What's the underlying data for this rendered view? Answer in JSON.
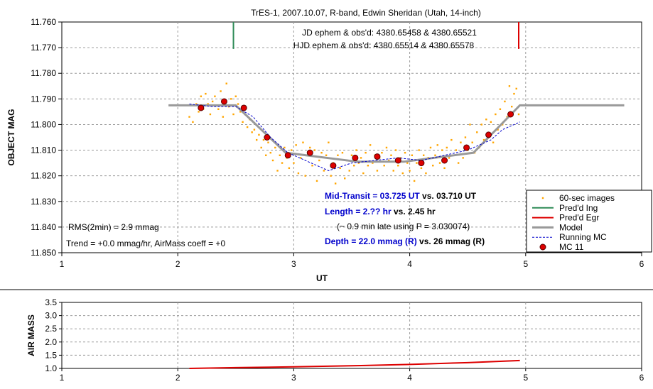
{
  "chart_data": [
    {
      "type": "scatter",
      "title": "TrES-1, 2007.10.07, R-band, Edwin Sheridan (Utah, 14-inch)",
      "xlabel": "UT",
      "ylabel": "OBJECT MAG",
      "xlim": [
        1,
        6
      ],
      "ylim": [
        11.76,
        11.85
      ],
      "y_inverted": true,
      "grid": true,
      "x_ticks": [
        "1",
        "2",
        "3",
        "4",
        "5",
        "6"
      ],
      "y_ticks": [
        "11.760",
        "11.770",
        "11.780",
        "11.790",
        "11.800",
        "11.810",
        "11.820",
        "11.830",
        "11.840",
        "11.850"
      ],
      "annotations": {
        "jd_line": "JD ephem & obs'd: 4380.65458 & 4380.65521",
        "hjd_line": "HJD ephem & obs'd: 4380.65514 & 4380.65578",
        "mid_transit_label": "Mid-Transit = 03.725 UT",
        "mid_transit_vs": " vs. 03.710 UT",
        "length_label": "Length = 2.?? hr",
        "length_vs": " vs. 2.45 hr",
        "late_note": "(~ 0.9 min late using P = 3.030074)",
        "depth_label": "Depth = 22.0 mmag (R)",
        "depth_vs": " vs. 26 mmag  (R)",
        "rms": "RMS(2min) = 2.9 mmag",
        "trend": "Trend = +0.0 mmag/hr, AirMass coeff = +0"
      },
      "legend": {
        "position": "bottom-right",
        "entries": [
          "60-sec images",
          "Pred'd Ing",
          "Pred'd Egr",
          "Model",
          "Running MC",
          "MC 11"
        ]
      },
      "colors": {
        "images": "#ffa500",
        "ingress": "#2e8b57",
        "egress": "#dd0000",
        "model": "#999999",
        "running_mc": "#0000cc",
        "mc11_fill": "#dd0000",
        "mc11_stroke": "#550000",
        "highlight": "#0000cc"
      },
      "predicted_ingress_ut": 2.48,
      "predicted_egress_ut": 4.94,
      "model": {
        "name": "Model",
        "x": [
          1.92,
          2.5,
          2.93,
          3.55,
          3.95,
          4.55,
          4.95,
          5.85
        ],
        "y": [
          11.7925,
          11.7925,
          11.811,
          11.8145,
          11.8145,
          11.811,
          11.7925,
          11.7925
        ]
      },
      "running_mc": {
        "name": "Running MC",
        "x": [
          2.1,
          2.3,
          2.5,
          2.65,
          2.8,
          2.95,
          3.1,
          3.3,
          3.5,
          3.7,
          3.9,
          4.1,
          4.3,
          4.5,
          4.6,
          4.7,
          4.8,
          4.95
        ],
        "y": [
          11.792,
          11.793,
          11.793,
          11.797,
          11.805,
          11.811,
          11.814,
          11.818,
          11.815,
          11.814,
          11.813,
          11.814,
          11.812,
          11.81,
          11.808,
          11.806,
          11.802,
          11.799
        ]
      },
      "mc11": {
        "name": "MC 11",
        "x": [
          2.2,
          2.4,
          2.57,
          2.77,
          2.95,
          3.14,
          3.34,
          3.53,
          3.72,
          3.9,
          4.1,
          4.3,
          4.49,
          4.68,
          4.87
        ],
        "y": [
          11.7935,
          11.791,
          11.7935,
          11.805,
          11.812,
          11.811,
          11.816,
          11.813,
          11.8125,
          11.814,
          11.815,
          11.814,
          11.809,
          11.804,
          11.796
        ]
      },
      "images": {
        "name": "60-sec images",
        "x": [
          2.1,
          2.13,
          2.16,
          2.18,
          2.2,
          2.22,
          2.24,
          2.26,
          2.28,
          2.3,
          2.32,
          2.35,
          2.37,
          2.39,
          2.42,
          2.44,
          2.46,
          2.48,
          2.5,
          2.52,
          2.54,
          2.56,
          2.58,
          2.6,
          2.62,
          2.64,
          2.66,
          2.68,
          2.7,
          2.72,
          2.74,
          2.76,
          2.78,
          2.8,
          2.82,
          2.84,
          2.86,
          2.88,
          2.9,
          2.92,
          2.94,
          2.96,
          2.98,
          3.0,
          3.02,
          3.04,
          3.06,
          3.08,
          3.1,
          3.12,
          3.14,
          3.16,
          3.18,
          3.2,
          3.22,
          3.24,
          3.26,
          3.28,
          3.3,
          3.32,
          3.34,
          3.36,
          3.38,
          3.4,
          3.42,
          3.44,
          3.46,
          3.48,
          3.5,
          3.52,
          3.54,
          3.56,
          3.58,
          3.6,
          3.62,
          3.64,
          3.66,
          3.68,
          3.7,
          3.72,
          3.74,
          3.76,
          3.78,
          3.8,
          3.82,
          3.84,
          3.86,
          3.88,
          3.9,
          3.92,
          3.94,
          3.96,
          3.98,
          4.0,
          4.02,
          4.04,
          4.06,
          4.08,
          4.1,
          4.12,
          4.14,
          4.16,
          4.18,
          4.2,
          4.22,
          4.24,
          4.26,
          4.28,
          4.3,
          4.32,
          4.34,
          4.36,
          4.38,
          4.4,
          4.42,
          4.44,
          4.46,
          4.48,
          4.5,
          4.52,
          4.54,
          4.56,
          4.58,
          4.6,
          4.62,
          4.64,
          4.66,
          4.68,
          4.7,
          4.72,
          4.74,
          4.76,
          4.78,
          4.8,
          4.82,
          4.84,
          4.86,
          4.88,
          4.9,
          4.92,
          4.94
        ],
        "y": [
          11.797,
          11.799,
          11.792,
          11.795,
          11.789,
          11.794,
          11.788,
          11.792,
          11.796,
          11.791,
          11.789,
          11.794,
          11.787,
          11.797,
          11.784,
          11.793,
          11.79,
          11.796,
          11.789,
          11.792,
          11.795,
          11.799,
          11.796,
          11.801,
          11.798,
          11.803,
          11.802,
          11.806,
          11.804,
          11.809,
          11.806,
          11.812,
          11.807,
          11.811,
          11.814,
          11.809,
          11.818,
          11.812,
          11.815,
          11.809,
          11.813,
          11.817,
          11.81,
          11.815,
          11.808,
          11.819,
          11.813,
          11.807,
          11.82,
          11.812,
          11.809,
          11.816,
          11.81,
          11.822,
          11.814,
          11.811,
          11.818,
          11.812,
          11.807,
          11.82,
          11.815,
          11.823,
          11.812,
          11.817,
          11.811,
          11.821,
          11.814,
          11.818,
          11.812,
          11.816,
          11.81,
          11.815,
          11.813,
          11.819,
          11.811,
          11.816,
          11.808,
          11.815,
          11.812,
          11.818,
          11.813,
          11.811,
          11.816,
          11.809,
          11.814,
          11.812,
          11.818,
          11.81,
          11.816,
          11.813,
          11.819,
          11.811,
          11.815,
          11.818,
          11.812,
          11.822,
          11.815,
          11.81,
          11.817,
          11.812,
          11.819,
          11.813,
          11.809,
          11.816,
          11.812,
          11.808,
          11.815,
          11.81,
          11.817,
          11.809,
          11.813,
          11.806,
          11.812,
          11.81,
          11.815,
          11.807,
          11.813,
          11.805,
          11.81,
          11.8,
          11.807,
          11.811,
          11.803,
          11.809,
          11.8,
          11.806,
          11.798,
          11.804,
          11.799,
          11.807,
          11.796,
          11.802,
          11.794,
          11.8,
          11.791,
          11.797,
          11.785,
          11.793,
          11.788,
          11.786,
          11.796
        ]
      }
    },
    {
      "type": "line",
      "ylabel": "AIR MASS",
      "xlim": [
        1,
        6
      ],
      "ylim": [
        1.0,
        3.5
      ],
      "grid": true,
      "x_ticks": [
        "1",
        "2",
        "3",
        "4",
        "5",
        "6"
      ],
      "y_ticks": [
        "1.0",
        "1.5",
        "2.0",
        "2.5",
        "3.0",
        "3.5"
      ],
      "color": "#dd0000",
      "x": [
        2.1,
        2.5,
        3.0,
        3.5,
        4.0,
        4.5,
        4.95
      ],
      "y": [
        1.0,
        1.03,
        1.06,
        1.1,
        1.15,
        1.22,
        1.3
      ]
    }
  ]
}
